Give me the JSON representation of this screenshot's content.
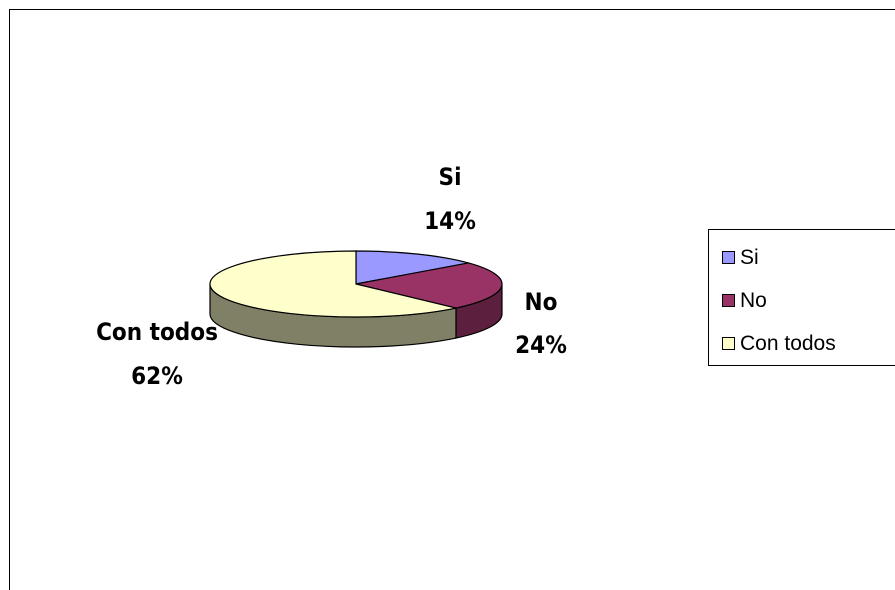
{
  "chart_data": {
    "type": "pie",
    "style": "3d-exploded-none",
    "categories": [
      "Si",
      "No",
      "Con todos"
    ],
    "values": [
      14,
      24,
      62
    ],
    "unit": "%",
    "data_labels": [
      {
        "category": "Si",
        "value_text": "14%"
      },
      {
        "category": "No",
        "value_text": "24%"
      },
      {
        "category": "Con todos",
        "value_text": "62%"
      }
    ],
    "colors": [
      "#9999ff",
      "#993366",
      "#ffffcc"
    ],
    "side_colors": [
      "#5c5c99",
      "#5c1f3d",
      "#808066"
    ],
    "title": "",
    "legend": {
      "position": "right",
      "entries": [
        "Si",
        "No",
        "Con todos"
      ]
    }
  }
}
